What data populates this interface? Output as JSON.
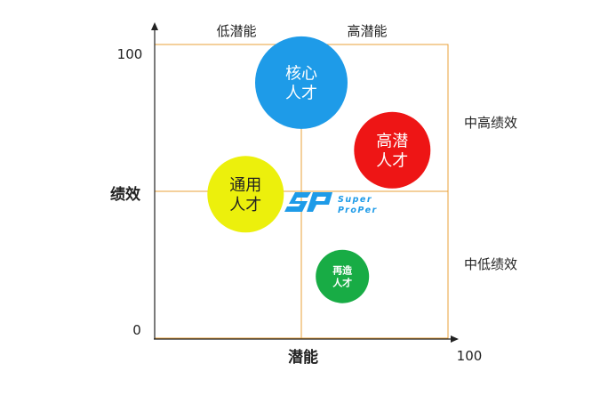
{
  "chart_data": {
    "type": "scatter",
    "x_axis": {
      "label": "潜能",
      "max_label": "100"
    },
    "y_axis": {
      "label": "绩效",
      "max_label": "100",
      "zero_label": "0"
    },
    "column_labels": [
      "低潜能",
      "高潜能"
    ],
    "row_labels": [
      "中高绩效",
      "中低绩效"
    ],
    "bubbles": [
      {
        "line1": "核心",
        "line2": "人才",
        "x": 50,
        "y": 87,
        "size": "large",
        "color": "#1e9be8",
        "text_color": "#ffffff"
      },
      {
        "line1": "高潜",
        "line2": "人才",
        "x": 81,
        "y": 64,
        "size": "medium",
        "color": "#ee1515",
        "text_color": "#ffffff"
      },
      {
        "line1": "通用",
        "line2": "人才",
        "x": 31,
        "y": 49,
        "size": "medium",
        "color": "#ecf00c",
        "text_color": "#222222"
      },
      {
        "line1": "再造",
        "line2": "人才",
        "x": 64,
        "y": 21,
        "size": "small",
        "color": "#18ac45",
        "text_color": "#ffffff"
      }
    ],
    "divider_color": "#e8a13a",
    "axis_color": "#222222"
  },
  "logo": {
    "text_top": "Super",
    "text_bottom": "ProPer",
    "color": "#1e9be8"
  }
}
